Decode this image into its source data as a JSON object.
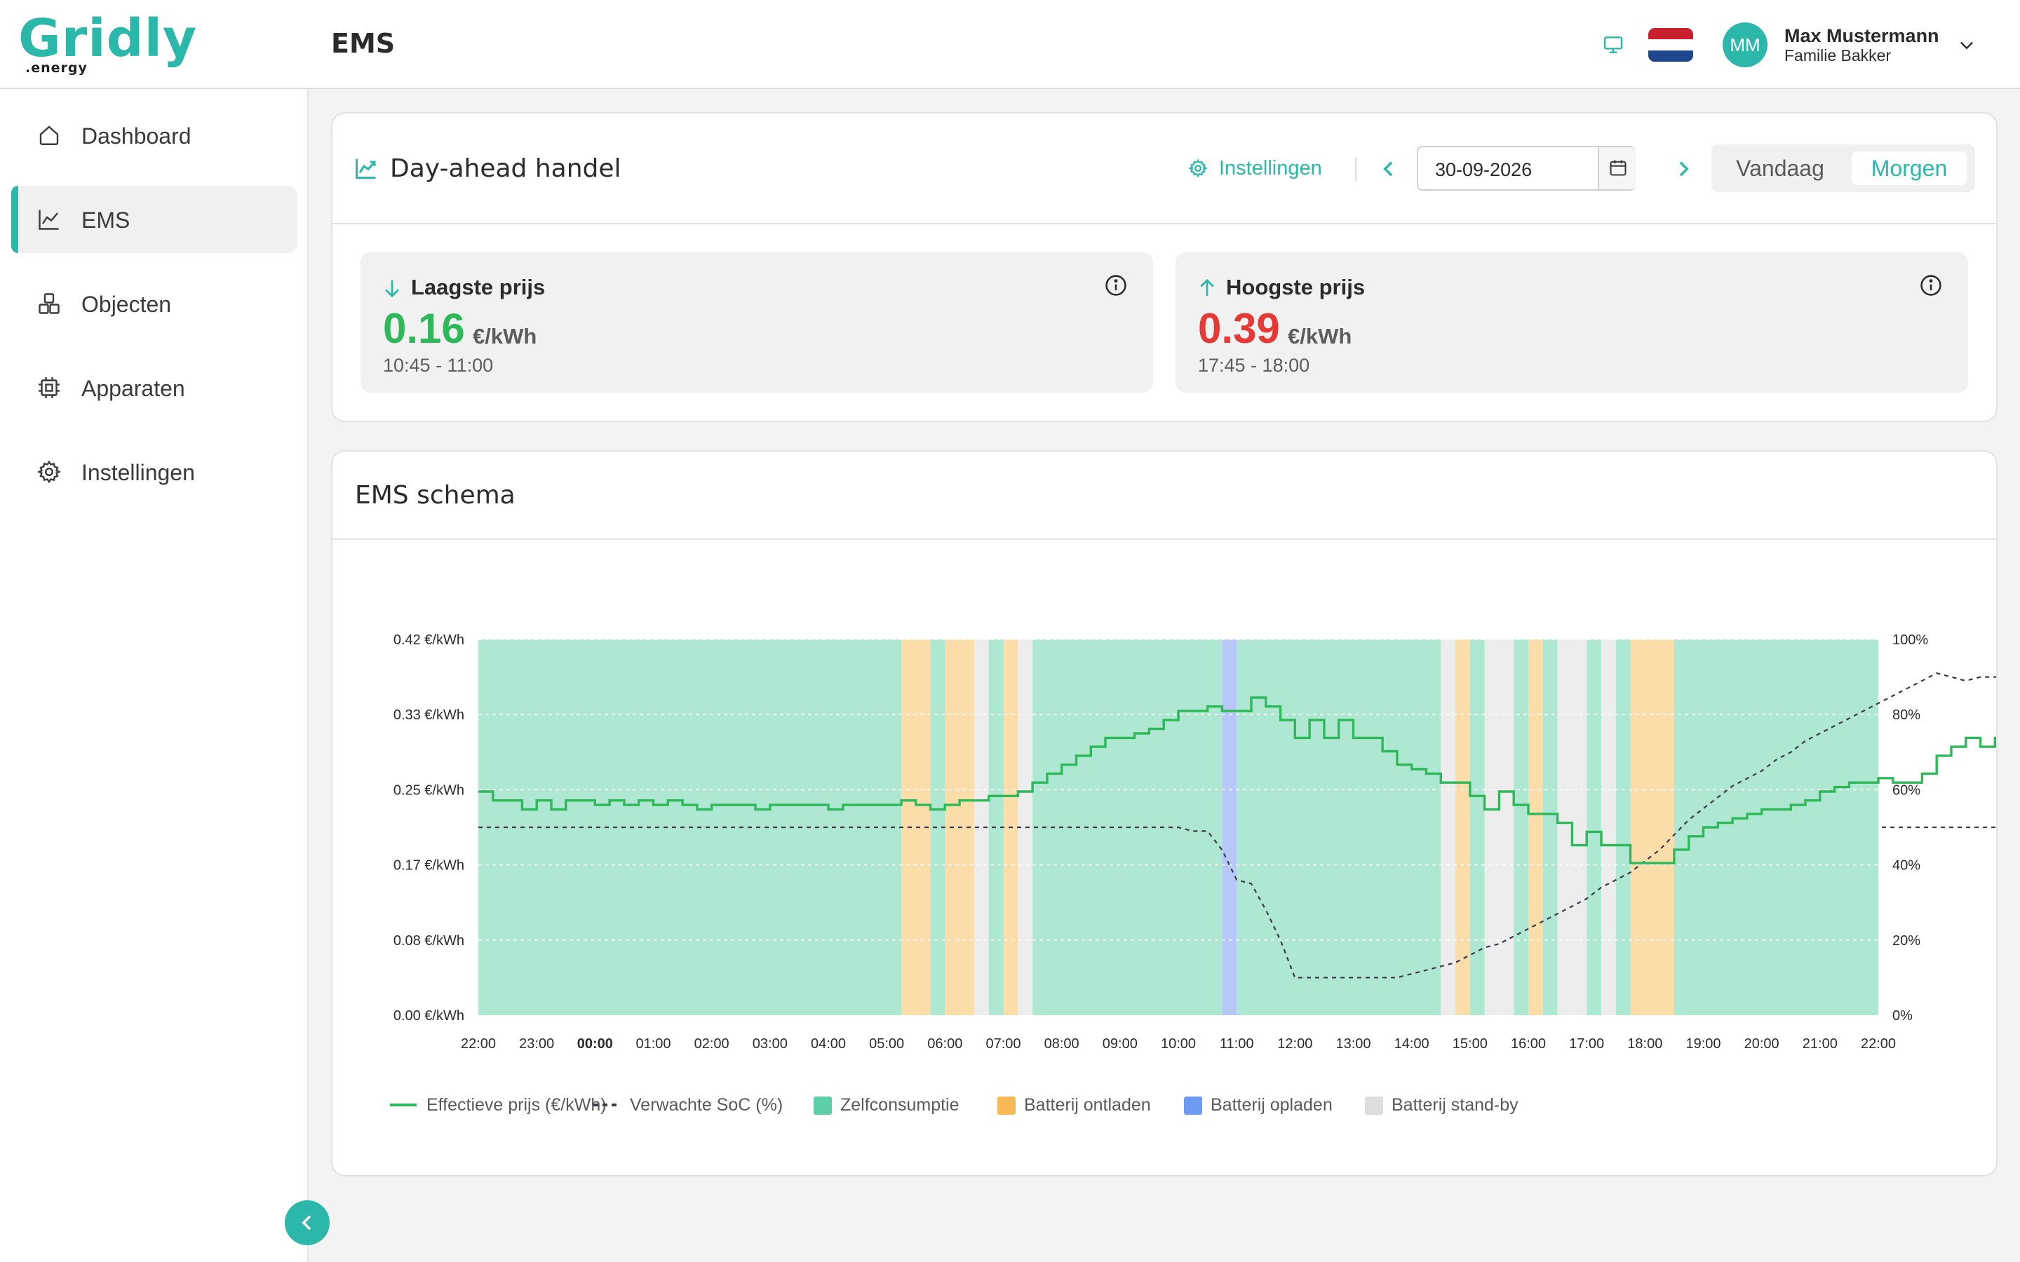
{
  "app": {
    "logo_main": "Gridly",
    "logo_sub": ".energy",
    "page_title": "EMS"
  },
  "header": {
    "icons": [
      "monitor-icon",
      "flag-nl-icon",
      "chevron-down-icon"
    ],
    "avatar_initials": "MM",
    "user_name": "Max Mustermann",
    "user_subtitle": "Familie Bakker"
  },
  "sidebar": {
    "items": [
      {
        "label": "Dashboard",
        "icon": "home-icon",
        "active": false
      },
      {
        "label": "EMS",
        "icon": "chart-line-icon",
        "active": true
      },
      {
        "label": "Objecten",
        "icon": "boxes-icon",
        "active": false
      },
      {
        "label": "Apparaten",
        "icon": "chip-icon",
        "active": false
      },
      {
        "label": "Instellingen",
        "icon": "gear-icon",
        "active": false
      }
    ],
    "collapse_icon": "chevron-left-icon"
  },
  "day_ahead": {
    "title": "Day-ahead handel",
    "settings_label": "Instellingen",
    "date": "30-09-2026",
    "today_label": "Vandaag",
    "tomorrow_label": "Morgen",
    "selected": "Morgen",
    "lowest": {
      "title": "Laagste prijs",
      "value": "0.16",
      "unit": "€/kWh",
      "time": "10:45 - 11:00",
      "color": "#2fb85a"
    },
    "highest": {
      "title": "Hoogste prijs",
      "value": "0.39",
      "unit": "€/kWh",
      "time": "17:45 - 18:00",
      "color": "#e53935"
    }
  },
  "ems": {
    "title": "EMS schema"
  },
  "colors": {
    "accent": "#2bb7aa",
    "price_line": "#2fb85a",
    "zelfconsumptie": "#aee8d2",
    "ontladen": "#fbddaa",
    "opladen": "#b7c7f7",
    "standby": "#ededed"
  },
  "chart_data": {
    "type": "line",
    "x_ticks": [
      "22:00",
      "23:00",
      "00:00",
      "01:00",
      "02:00",
      "03:00",
      "04:00",
      "05:00",
      "06:00",
      "07:00",
      "08:00",
      "09:00",
      "10:00",
      "11:00",
      "12:00",
      "13:00",
      "14:00",
      "15:00",
      "16:00",
      "17:00",
      "18:00",
      "19:00",
      "20:00",
      "21:00",
      "22:00"
    ],
    "y_left_ticks": [
      "0.00 €/kWh",
      "0.08 €/kWh",
      "0.17 €/kWh",
      "0.25 €/kWh",
      "0.33 €/kWh",
      "0.42 €/kWh"
    ],
    "y_right_ticks": [
      "0%",
      "20%",
      "40%",
      "60%",
      "80%",
      "100%"
    ],
    "ylim_left": [
      0,
      0.42
    ],
    "ylim_right": [
      0,
      100
    ],
    "grid": true,
    "legend_position": "bottom-left",
    "legend": [
      {
        "label": "Effectieve prijs (€/kWh)",
        "kind": "line",
        "color": "#2fb85a"
      },
      {
        "label": "Verwachte SoC (%)",
        "kind": "dashed",
        "color": "#3a3a4a"
      },
      {
        "label": "Zelfconsumptie",
        "kind": "box",
        "color": "#5ccfa8"
      },
      {
        "label": "Batterij ontladen",
        "kind": "box",
        "color": "#f6b955"
      },
      {
        "label": "Batterij opladen",
        "kind": "box",
        "color": "#6f9af2"
      },
      {
        "label": "Batterij stand-by",
        "kind": "box",
        "color": "#dddddd"
      }
    ],
    "series": [
      {
        "name": "Effectieve prijs (€/kWh)",
        "step": "quarter-hour",
        "start_hour": 0,
        "values": [
          0.25,
          0.24,
          0.24,
          0.23,
          0.24,
          0.23,
          0.24,
          0.24,
          0.235,
          0.24,
          0.235,
          0.24,
          0.235,
          0.24,
          0.235,
          0.23,
          0.235,
          0.235,
          0.235,
          0.23,
          0.235,
          0.235,
          0.235,
          0.235,
          0.23,
          0.235,
          0.235,
          0.235,
          0.235,
          0.24,
          0.235,
          0.23,
          0.235,
          0.24,
          0.24,
          0.245,
          0.245,
          0.25,
          0.26,
          0.27,
          0.28,
          0.29,
          0.3,
          0.31,
          0.31,
          0.315,
          0.32,
          0.33,
          0.34,
          0.34,
          0.345,
          0.34,
          0.34,
          0.355,
          0.345,
          0.33,
          0.31,
          0.33,
          0.31,
          0.33,
          0.31,
          0.31,
          0.295,
          0.28,
          0.275,
          0.27,
          0.26,
          0.26,
          0.245,
          0.23,
          0.25,
          0.235,
          0.225,
          0.225,
          0.215,
          0.19,
          0.205,
          0.19,
          0.19,
          0.17,
          0.17,
          0.17,
          0.185,
          0.2,
          0.21,
          0.215,
          0.22,
          0.225,
          0.23,
          0.23,
          0.235,
          0.24,
          0.25,
          0.255,
          0.26,
          0.26,
          0.265,
          0.26,
          0.26,
          0.27,
          0.29,
          0.3,
          0.31,
          0.3,
          0.31,
          0.33,
          0.335,
          0.34,
          0.35,
          0.34,
          0.34,
          0.35,
          0.355,
          0.35,
          0.36,
          0.375,
          0.365,
          0.36,
          0.375,
          0.37,
          0.375,
          0.38,
          0.385,
          0.385,
          0.38,
          0.375,
          0.375,
          0.37,
          0.365,
          0.355,
          0.35,
          0.355,
          0.36,
          0.345,
          0.335,
          0.33,
          0.32,
          0.31,
          0.315,
          0.305,
          0.31,
          0.31,
          0.305,
          0.305,
          0.3,
          0.31,
          0.3,
          0.3,
          0.29
        ]
      },
      {
        "name": "Verwachte SoC (%)",
        "step": "quarter-hour",
        "start_hour": 0,
        "values": [
          50,
          50,
          50,
          50,
          50,
          50,
          50,
          50,
          50,
          50,
          50,
          50,
          50,
          50,
          50,
          50,
          50,
          50,
          50,
          50,
          50,
          50,
          50,
          50,
          50,
          50,
          50,
          50,
          50,
          50,
          50,
          50,
          50,
          50,
          50,
          50,
          50,
          50,
          50,
          50,
          50,
          50,
          50,
          50,
          50,
          50,
          50,
          50,
          50,
          49,
          49,
          44,
          36,
          35,
          28,
          20,
          10,
          10,
          10,
          10,
          10,
          10,
          10,
          10,
          11,
          12,
          13,
          14,
          16,
          18,
          19,
          21,
          23,
          25,
          27,
          29,
          31,
          34,
          36,
          38,
          41,
          44,
          48,
          52,
          55,
          58,
          61,
          63,
          65,
          68,
          70,
          73,
          75,
          77,
          79,
          81,
          83,
          85,
          87,
          89,
          91,
          90,
          89,
          90,
          90,
          90,
          90,
          89,
          90,
          90,
          90,
          90,
          77,
          77,
          70,
          60,
          50,
          50,
          50,
          50,
          50,
          50,
          50,
          50,
          50,
          50,
          50,
          50,
          50,
          50,
          50,
          50,
          50,
          50,
          50,
          50,
          50,
          50,
          50,
          50,
          50,
          50,
          50,
          50,
          50,
          50,
          50,
          50,
          50
        ]
      }
    ],
    "bands": [
      {
        "from": "22:00",
        "to": "05:15",
        "mode": "Zelfconsumptie"
      },
      {
        "from": "05:15",
        "to": "05:45",
        "mode": "Batterij ontladen"
      },
      {
        "from": "05:45",
        "to": "06:00",
        "mode": "Zelfconsumptie"
      },
      {
        "from": "06:00",
        "to": "06:30",
        "mode": "Batterij ontladen"
      },
      {
        "from": "06:30",
        "to": "06:45",
        "mode": "Batterij stand-by"
      },
      {
        "from": "06:45",
        "to": "07:00",
        "mode": "Zelfconsumptie"
      },
      {
        "from": "07:00",
        "to": "07:15",
        "mode": "Batterij ontladen"
      },
      {
        "from": "07:15",
        "to": "07:30",
        "mode": "Batterij stand-by"
      },
      {
        "from": "07:30",
        "to": "10:45",
        "mode": "Zelfconsumptie"
      },
      {
        "from": "10:45",
        "to": "11:00",
        "mode": "Batterij opladen"
      },
      {
        "from": "11:00",
        "to": "14:30",
        "mode": "Zelfconsumptie"
      },
      {
        "from": "14:30",
        "to": "14:45",
        "mode": "Batterij stand-by"
      },
      {
        "from": "14:45",
        "to": "15:00",
        "mode": "Batterij ontladen"
      },
      {
        "from": "15:00",
        "to": "15:15",
        "mode": "Zelfconsumptie"
      },
      {
        "from": "15:15",
        "to": "15:45",
        "mode": "Batterij stand-by"
      },
      {
        "from": "15:45",
        "to": "16:00",
        "mode": "Zelfconsumptie"
      },
      {
        "from": "16:00",
        "to": "16:15",
        "mode": "Batterij ontladen"
      },
      {
        "from": "16:15",
        "to": "16:30",
        "mode": "Zelfconsumptie"
      },
      {
        "from": "16:30",
        "to": "17:00",
        "mode": "Batterij stand-by"
      },
      {
        "from": "17:00",
        "to": "17:15",
        "mode": "Zelfconsumptie"
      },
      {
        "from": "17:15",
        "to": "17:30",
        "mode": "Batterij stand-by"
      },
      {
        "from": "17:30",
        "to": "17:45",
        "mode": "Zelfconsumptie"
      },
      {
        "from": "17:45",
        "to": "18:30",
        "mode": "Batterij ontladen"
      },
      {
        "from": "18:30",
        "to": "22:00",
        "mode": "Zelfconsumptie"
      }
    ]
  }
}
